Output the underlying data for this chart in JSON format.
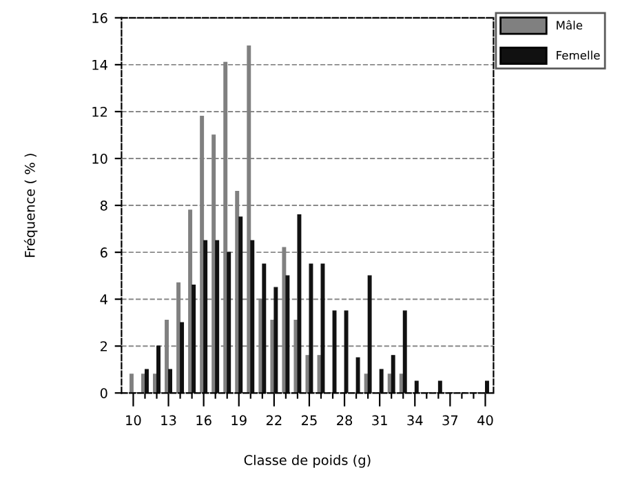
{
  "chart_data": {
    "type": "bar",
    "xlabel": "Classe de poids (g)",
    "ylabel": "Fréquence ( % )",
    "x": [
      10,
      11,
      12,
      13,
      14,
      15,
      16,
      17,
      18,
      19,
      20,
      21,
      22,
      23,
      24,
      25,
      26,
      27,
      28,
      29,
      30,
      31,
      32,
      33,
      34,
      35,
      36,
      37,
      38,
      39,
      40
    ],
    "series": [
      {
        "name": "Mâle",
        "color": "#808080",
        "values": [
          0.8,
          0.8,
          0.8,
          3.1,
          4.7,
          7.8,
          11.8,
          11.0,
          14.1,
          8.6,
          14.8,
          4.0,
          3.1,
          6.2,
          3.1,
          1.6,
          1.6,
          0,
          0,
          0,
          0.8,
          0,
          0.8,
          0.8,
          0,
          0,
          0,
          0,
          0,
          0,
          0
        ]
      },
      {
        "name": "Femelle",
        "color": "#111111",
        "values": [
          0,
          1.0,
          2.0,
          1.0,
          3.0,
          4.6,
          6.5,
          6.5,
          6.0,
          7.5,
          6.5,
          5.5,
          4.5,
          5.0,
          7.6,
          5.5,
          5.5,
          3.5,
          3.5,
          1.5,
          5.0,
          1.0,
          1.6,
          3.5,
          0.5,
          0,
          0.5,
          0,
          0,
          0,
          0.5
        ]
      }
    ],
    "xlim": [
      9,
      40.7
    ],
    "xticks": [
      10,
      {
        "value": 11,
        "label": null
      },
      {
        "value": 12,
        "label": null
      },
      13,
      {
        "value": 14,
        "label": null
      },
      {
        "value": 15,
        "label": null
      },
      16,
      {
        "value": 17,
        "label": null
      },
      {
        "value": 18,
        "label": null
      },
      19,
      {
        "value": 20,
        "label": null
      },
      {
        "value": 21,
        "label": null
      },
      22,
      {
        "value": 23,
        "label": null
      },
      {
        "value": 24,
        "label": null
      },
      25,
      {
        "value": 26,
        "label": null
      },
      {
        "value": 27,
        "label": null
      },
      28,
      {
        "value": 29,
        "label": null
      },
      {
        "value": 30,
        "label": null
      },
      31,
      {
        "value": 32,
        "label": null
      },
      {
        "value": 33,
        "label": null
      },
      34,
      {
        "value": 35,
        "label": null
      },
      {
        "value": 36,
        "label": null
      },
      37,
      {
        "value": 38,
        "label": null
      },
      {
        "value": 39,
        "label": null
      },
      40
    ],
    "ylim": [
      0,
      16
    ],
    "yticks": [
      0,
      2,
      4,
      6,
      8,
      10,
      12,
      14,
      16
    ],
    "grid": "y",
    "legend": "top right"
  }
}
